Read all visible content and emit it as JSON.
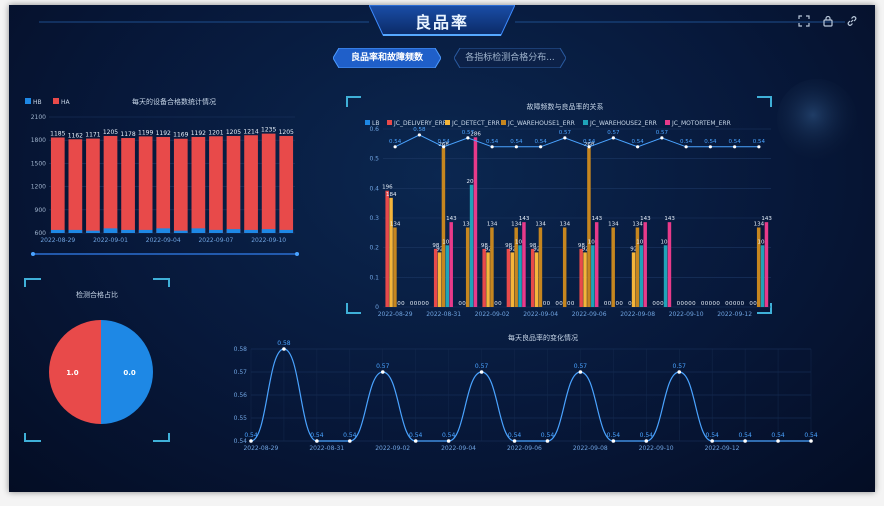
{
  "header": {
    "title": "良品率"
  },
  "tabs": [
    {
      "label": "良品率和故障频数",
      "active": true
    },
    {
      "label": "各指标检测合格分布...",
      "active": false
    }
  ],
  "icons": [
    "expand-icon",
    "lock-icon",
    "link-icon"
  ],
  "colors": {
    "accent": "#2d7fe6",
    "HB": "#1e88e5",
    "HA": "#e84a4a",
    "line": "#4aa3ff"
  },
  "chart_data": [
    {
      "id": "daily_qualified",
      "type": "bar",
      "title": "每天的设备合格数统计情况",
      "legend": [
        "HB",
        "HA"
      ],
      "x_tick_labels": [
        "2022-08-29",
        "2022-09-01",
        "2022-09-04",
        "2022-09-07",
        "2022-09-10"
      ],
      "ylim": [
        600,
        2100
      ],
      "yticks": [
        600,
        900,
        1200,
        1500,
        1800,
        2100
      ],
      "series": [
        {
          "name": "HB",
          "values": [
            640,
            640,
            630,
            660,
            640,
            640,
            660,
            630,
            660,
            640,
            650,
            640,
            650,
            640
          ]
        },
        {
          "name": "HA",
          "values": [
            1185,
            1162,
            1171,
            1205,
            1178,
            1199,
            1192,
            1169,
            1192,
            1201,
            1205,
            1214,
            1235,
            1205
          ]
        }
      ],
      "data_labels": [
        "1185",
        "1162",
        "1171",
        "1205",
        "1178",
        "1199",
        "1192",
        "1169",
        "1192",
        "1201",
        "1205",
        "1214",
        "1235",
        "1205"
      ]
    },
    {
      "id": "pass_ratio",
      "type": "pie",
      "title": "检测合格占比",
      "slices": [
        {
          "label": "1.0",
          "value": 1.0,
          "color": "#e84a4a"
        },
        {
          "label": "0.0",
          "value": 1.0,
          "color": "#1e88e5"
        }
      ]
    },
    {
      "id": "fault_vs_yield",
      "type": "bar",
      "title": "故障频数与良品率的关系",
      "legend": [
        "LB",
        "JC_DELIVERY_ERR",
        "JC_DETECT_ERR",
        "JC_WAREHOUSE1_ERR",
        "JC_WAREHOUSE2_ERR",
        "JC_MOTORTEM_ERR"
      ],
      "x_tick_labels": [
        "2022-08-29",
        "2022-08-31",
        "2022-09-02",
        "2022-09-04",
        "2022-09-06",
        "2022-09-08",
        "2022-09-10",
        "2022-09-12"
      ],
      "left_ylim": [
        0,
        0.6
      ],
      "left_yticks": [
        "0",
        "0.1",
        "0.2",
        "0.3",
        "0.4",
        "0.5",
        "0.6"
      ],
      "right_ylim": [
        0,
        300
      ],
      "right_yticks": [
        "0",
        "50",
        "100",
        "150",
        "200",
        "250",
        "300"
      ],
      "series": [
        {
          "name": "JC_DELIVERY_ERR",
          "color": "#e84a4a",
          "values": [
            196,
            0,
            98,
            0,
            98,
            98,
            98,
            0,
            98,
            0,
            0,
            0,
            0,
            0,
            0,
            0
          ]
        },
        {
          "name": "JC_DETECT_ERR",
          "color": "#f5b53a",
          "values": [
            184,
            0,
            92,
            0,
            92,
            92,
            92,
            0,
            92,
            0,
            92,
            0,
            0,
            0,
            0,
            0
          ]
        },
        {
          "name": "JC_WAREHOUSE1_ERR",
          "color": "#c6861f",
          "values": [
            134,
            0,
            268,
            134,
            134,
            134,
            134,
            134,
            268,
            134,
            134,
            0,
            0,
            0,
            0,
            134
          ]
        },
        {
          "name": "JC_WAREHOUSE2_ERR",
          "color": "#1fa3b8",
          "values": [
            0,
            0,
            104,
            206,
            0,
            104,
            0,
            0,
            104,
            0,
            104,
            104,
            0,
            0,
            0,
            104
          ]
        },
        {
          "name": "JC_MOTORTEM_ERR",
          "color": "#e83a8a",
          "values": [
            0,
            0,
            143,
            286,
            0,
            143,
            0,
            0,
            143,
            0,
            143,
            143,
            0,
            0,
            0,
            143
          ]
        }
      ],
      "line_series": {
        "name": "LB",
        "values": [
          0.54,
          0.58,
          0.54,
          0.57,
          0.54,
          0.54,
          0.54,
          0.57,
          0.54,
          0.57,
          0.54,
          0.57,
          0.54,
          0.54,
          0.54,
          0.54
        ]
      }
    },
    {
      "id": "daily_yield",
      "type": "line",
      "title": "每天良品率的变化情况",
      "x_tick_labels": [
        "2022-08-29",
        "2022-08-31",
        "2022-09-02",
        "2022-09-04",
        "2022-09-06",
        "2022-09-08",
        "2022-09-10",
        "2022-09-12"
      ],
      "ylim": [
        0.54,
        0.58
      ],
      "yticks": [
        "0.54",
        "0.55",
        "0.56",
        "0.57",
        "0.58"
      ],
      "values": [
        0.54,
        0.58,
        0.54,
        0.54,
        0.57,
        0.54,
        0.54,
        0.57,
        0.54,
        0.54,
        0.57,
        0.54,
        0.54,
        0.57,
        0.54,
        0.54,
        0.54,
        0.54
      ],
      "data_labels": [
        "0.54",
        "0.58",
        "0.54",
        "0.54",
        "0.57",
        "0.54",
        "0.54",
        "0.57",
        "0.54",
        "0.54",
        "0.57",
        "0.54",
        "0.54",
        "0.57",
        "0.54",
        "0.54",
        "0.54",
        "0.54"
      ]
    }
  ]
}
